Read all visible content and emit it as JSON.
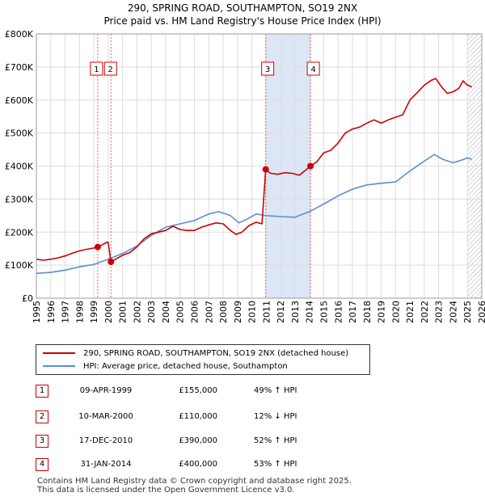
{
  "title_line1": "290, SPRING ROAD, SOUTHAMPTON, SO19 2NX",
  "title_line2": "Price paid vs. HM Land Registry's House Price Index (HPI)",
  "colors": {
    "red": "#cc0000",
    "blue": "#5b8fcc",
    "shade": "#dde6f7",
    "grid": "#dddddd"
  },
  "chart_data": {
    "type": "line",
    "title": "290, SPRING ROAD, SOUTHAMPTON, SO19 2NX",
    "subtitle": "Price paid vs. HM Land Registry's House Price Index (HPI)",
    "xlim": [
      1995,
      2026
    ],
    "ylim": [
      0,
      800000
    ],
    "yticks": [
      {
        "value": 0,
        "label": "£0"
      },
      {
        "value": 100000,
        "label": "£100K"
      },
      {
        "value": 200000,
        "label": "£200K"
      },
      {
        "value": 300000,
        "label": "£300K"
      },
      {
        "value": 400000,
        "label": "£400K"
      },
      {
        "value": 500000,
        "label": "£500K"
      },
      {
        "value": 600000,
        "label": "£600K"
      },
      {
        "value": 700000,
        "label": "£700K"
      },
      {
        "value": 800000,
        "label": "£800K"
      }
    ],
    "xticks": [
      "1995",
      "1996",
      "1997",
      "1998",
      "1999",
      "2000",
      "2001",
      "2002",
      "2003",
      "2004",
      "2005",
      "2006",
      "2007",
      "2008",
      "2009",
      "2010",
      "2011",
      "2012",
      "2013",
      "2014",
      "2015",
      "2016",
      "2017",
      "2018",
      "2019",
      "2020",
      "2021",
      "2022",
      "2023",
      "2024",
      "2025",
      "2026"
    ],
    "grid": true,
    "shaded_range": [
      2010.96,
      2014.08
    ],
    "future_from": 2025.0,
    "series": [
      {
        "name": "290, SPRING ROAD, SOUTHAMPTON, SO19 2NX (detached house)",
        "color": "#cc0000",
        "points": [
          [
            1995.0,
            118000
          ],
          [
            1995.5,
            115000
          ],
          [
            1996.0,
            118000
          ],
          [
            1996.5,
            122000
          ],
          [
            1997.0,
            128000
          ],
          [
            1997.5,
            136000
          ],
          [
            1998.0,
            143000
          ],
          [
            1998.5,
            148000
          ],
          [
            1999.0,
            152000
          ],
          [
            1999.27,
            155000
          ],
          [
            1999.6,
            162000
          ],
          [
            1999.95,
            170000
          ],
          [
            2000.0,
            168000
          ],
          [
            2000.19,
            110000
          ],
          [
            2000.5,
            118000
          ],
          [
            2001.0,
            130000
          ],
          [
            2001.5,
            138000
          ],
          [
            2002.0,
            155000
          ],
          [
            2002.5,
            180000
          ],
          [
            2003.0,
            195000
          ],
          [
            2003.5,
            200000
          ],
          [
            2004.0,
            205000
          ],
          [
            2004.5,
            218000
          ],
          [
            2005.0,
            208000
          ],
          [
            2005.5,
            205000
          ],
          [
            2006.0,
            205000
          ],
          [
            2006.5,
            215000
          ],
          [
            2007.0,
            222000
          ],
          [
            2007.5,
            228000
          ],
          [
            2008.0,
            225000
          ],
          [
            2008.5,
            205000
          ],
          [
            2008.9,
            193000
          ],
          [
            2009.3,
            200000
          ],
          [
            2009.8,
            220000
          ],
          [
            2010.3,
            230000
          ],
          [
            2010.7,
            225000
          ],
          [
            2010.96,
            390000
          ],
          [
            2011.3,
            378000
          ],
          [
            2011.8,
            375000
          ],
          [
            2012.3,
            380000
          ],
          [
            2012.8,
            378000
          ],
          [
            2013.3,
            372000
          ],
          [
            2013.8,
            390000
          ],
          [
            2014.08,
            400000
          ],
          [
            2014.5,
            412000
          ],
          [
            2015.0,
            440000
          ],
          [
            2015.5,
            448000
          ],
          [
            2016.0,
            470000
          ],
          [
            2016.5,
            500000
          ],
          [
            2017.0,
            512000
          ],
          [
            2017.5,
            518000
          ],
          [
            2018.0,
            530000
          ],
          [
            2018.5,
            540000
          ],
          [
            2019.0,
            530000
          ],
          [
            2019.5,
            540000
          ],
          [
            2020.0,
            548000
          ],
          [
            2020.5,
            555000
          ],
          [
            2021.0,
            600000
          ],
          [
            2021.5,
            622000
          ],
          [
            2022.0,
            645000
          ],
          [
            2022.5,
            660000
          ],
          [
            2022.8,
            665000
          ],
          [
            2023.2,
            640000
          ],
          [
            2023.6,
            620000
          ],
          [
            2024.0,
            625000
          ],
          [
            2024.4,
            635000
          ],
          [
            2024.7,
            658000
          ],
          [
            2025.0,
            645000
          ],
          [
            2025.3,
            640000
          ]
        ]
      },
      {
        "name": "HPI: Average price, detached house, Southampton",
        "color": "#5b8fcc",
        "points": [
          [
            1995.0,
            75000
          ],
          [
            1996.0,
            78000
          ],
          [
            1997.0,
            85000
          ],
          [
            1998.0,
            95000
          ],
          [
            1999.0,
            102000
          ],
          [
            2000.0,
            118000
          ],
          [
            2001.0,
            135000
          ],
          [
            2002.0,
            158000
          ],
          [
            2003.0,
            190000
          ],
          [
            2004.0,
            215000
          ],
          [
            2005.0,
            225000
          ],
          [
            2006.0,
            235000
          ],
          [
            2007.0,
            255000
          ],
          [
            2007.7,
            262000
          ],
          [
            2008.5,
            250000
          ],
          [
            2009.1,
            228000
          ],
          [
            2009.6,
            238000
          ],
          [
            2010.3,
            255000
          ],
          [
            2011.0,
            250000
          ],
          [
            2012.0,
            247000
          ],
          [
            2013.0,
            245000
          ],
          [
            2014.0,
            262000
          ],
          [
            2015.0,
            285000
          ],
          [
            2016.0,
            310000
          ],
          [
            2017.0,
            330000
          ],
          [
            2018.0,
            343000
          ],
          [
            2019.0,
            348000
          ],
          [
            2020.0,
            352000
          ],
          [
            2021.0,
            385000
          ],
          [
            2022.0,
            415000
          ],
          [
            2022.7,
            435000
          ],
          [
            2023.3,
            420000
          ],
          [
            2024.0,
            410000
          ],
          [
            2024.6,
            418000
          ],
          [
            2025.0,
            425000
          ],
          [
            2025.3,
            420000
          ]
        ]
      }
    ],
    "markers": [
      {
        "label": "1",
        "x": 1999.27,
        "y": 155000
      },
      {
        "label": "2",
        "x": 2000.19,
        "y": 110000
      },
      {
        "label": "3",
        "x": 2010.96,
        "y": 390000
      },
      {
        "label": "4",
        "x": 2014.08,
        "y": 400000
      }
    ]
  },
  "legend": {
    "red_label": "290, SPRING ROAD, SOUTHAMPTON, SO19 2NX (detached house)",
    "blue_label": "HPI: Average price, detached house, Southampton"
  },
  "transactions": [
    {
      "num": "1",
      "date": "09-APR-1999",
      "price": "£155,000",
      "hpi": "49% ↑ HPI"
    },
    {
      "num": "2",
      "date": "10-MAR-2000",
      "price": "£110,000",
      "hpi": "12% ↓ HPI"
    },
    {
      "num": "3",
      "date": "17-DEC-2010",
      "price": "£390,000",
      "hpi": "52% ↑ HPI"
    },
    {
      "num": "4",
      "date": "31-JAN-2014",
      "price": "£400,000",
      "hpi": "53% ↑ HPI"
    }
  ],
  "footer": {
    "line1": "Contains HM Land Registry data © Crown copyright and database right 2025.",
    "line2": "This data is licensed under the Open Government Licence v3.0."
  }
}
